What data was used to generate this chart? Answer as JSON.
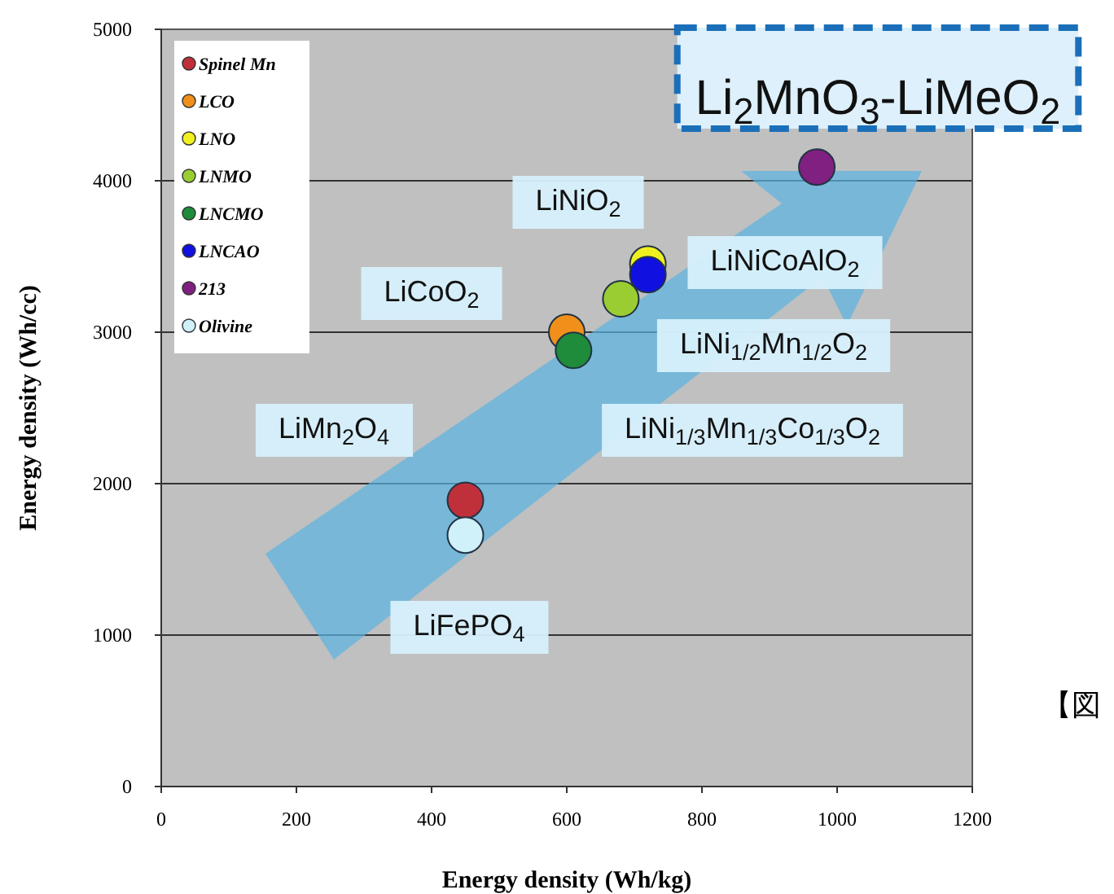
{
  "chart_data": {
    "type": "scatter",
    "title": "Li$_{2}$MnO$_{3}$-LiMeO$_{2}$",
    "xlabel": "Energy density (Wh/kg)",
    "ylabel": "Energy density (Wh/cc)",
    "xlim": [
      0,
      1200
    ],
    "ylim": [
      0,
      5000
    ],
    "xticks": [
      0,
      200,
      400,
      600,
      800,
      1000,
      1200
    ],
    "yticks": [
      0,
      1000,
      2000,
      3000,
      4000,
      5000
    ],
    "grid": "y",
    "legend": "top left",
    "marker": "circle",
    "series": [
      {
        "name": "Spinel Mn",
        "color": "#c0303a",
        "x": [
          450
        ],
        "values": [
          1890
        ]
      },
      {
        "name": "LCO",
        "color": "#f0901a",
        "x": [
          600
        ],
        "values": [
          3000
        ]
      },
      {
        "name": "LNO",
        "color": "#f0f020",
        "x": [
          720
        ],
        "values": [
          3450
        ]
      },
      {
        "name": "LNMO",
        "color": "#9acd32",
        "x": [
          680
        ],
        "values": [
          3220
        ]
      },
      {
        "name": "LNCMO",
        "color": "#1e8c3a",
        "x": [
          610
        ],
        "values": [
          2880
        ]
      },
      {
        "name": "LNCAO",
        "color": "#1010e0",
        "x": [
          720
        ],
        "values": [
          3380
        ]
      },
      {
        "name": "213",
        "color": "#802080",
        "x": [
          970
        ],
        "values": [
          4090
        ]
      },
      {
        "name": "Olivine",
        "color": "#d0f0fa",
        "x": [
          450
        ],
        "values": [
          1660
        ]
      }
    ],
    "annotations": [
      "LiNiO$_{2}$",
      "LiCoO$_{2}$",
      "LiMn$_{2}$O$_{4}$",
      "LiFePO$_{4}$",
      "LiNiCoAlO$_{2}$",
      "LiNi$_{1/2}$Mn$_{1/2}$O$_{2}$",
      "LiNi$_{1/3}$Mn$_{1/3}$Co$_{1/3}$O$_{2}$",
      "【図"
    ]
  }
}
